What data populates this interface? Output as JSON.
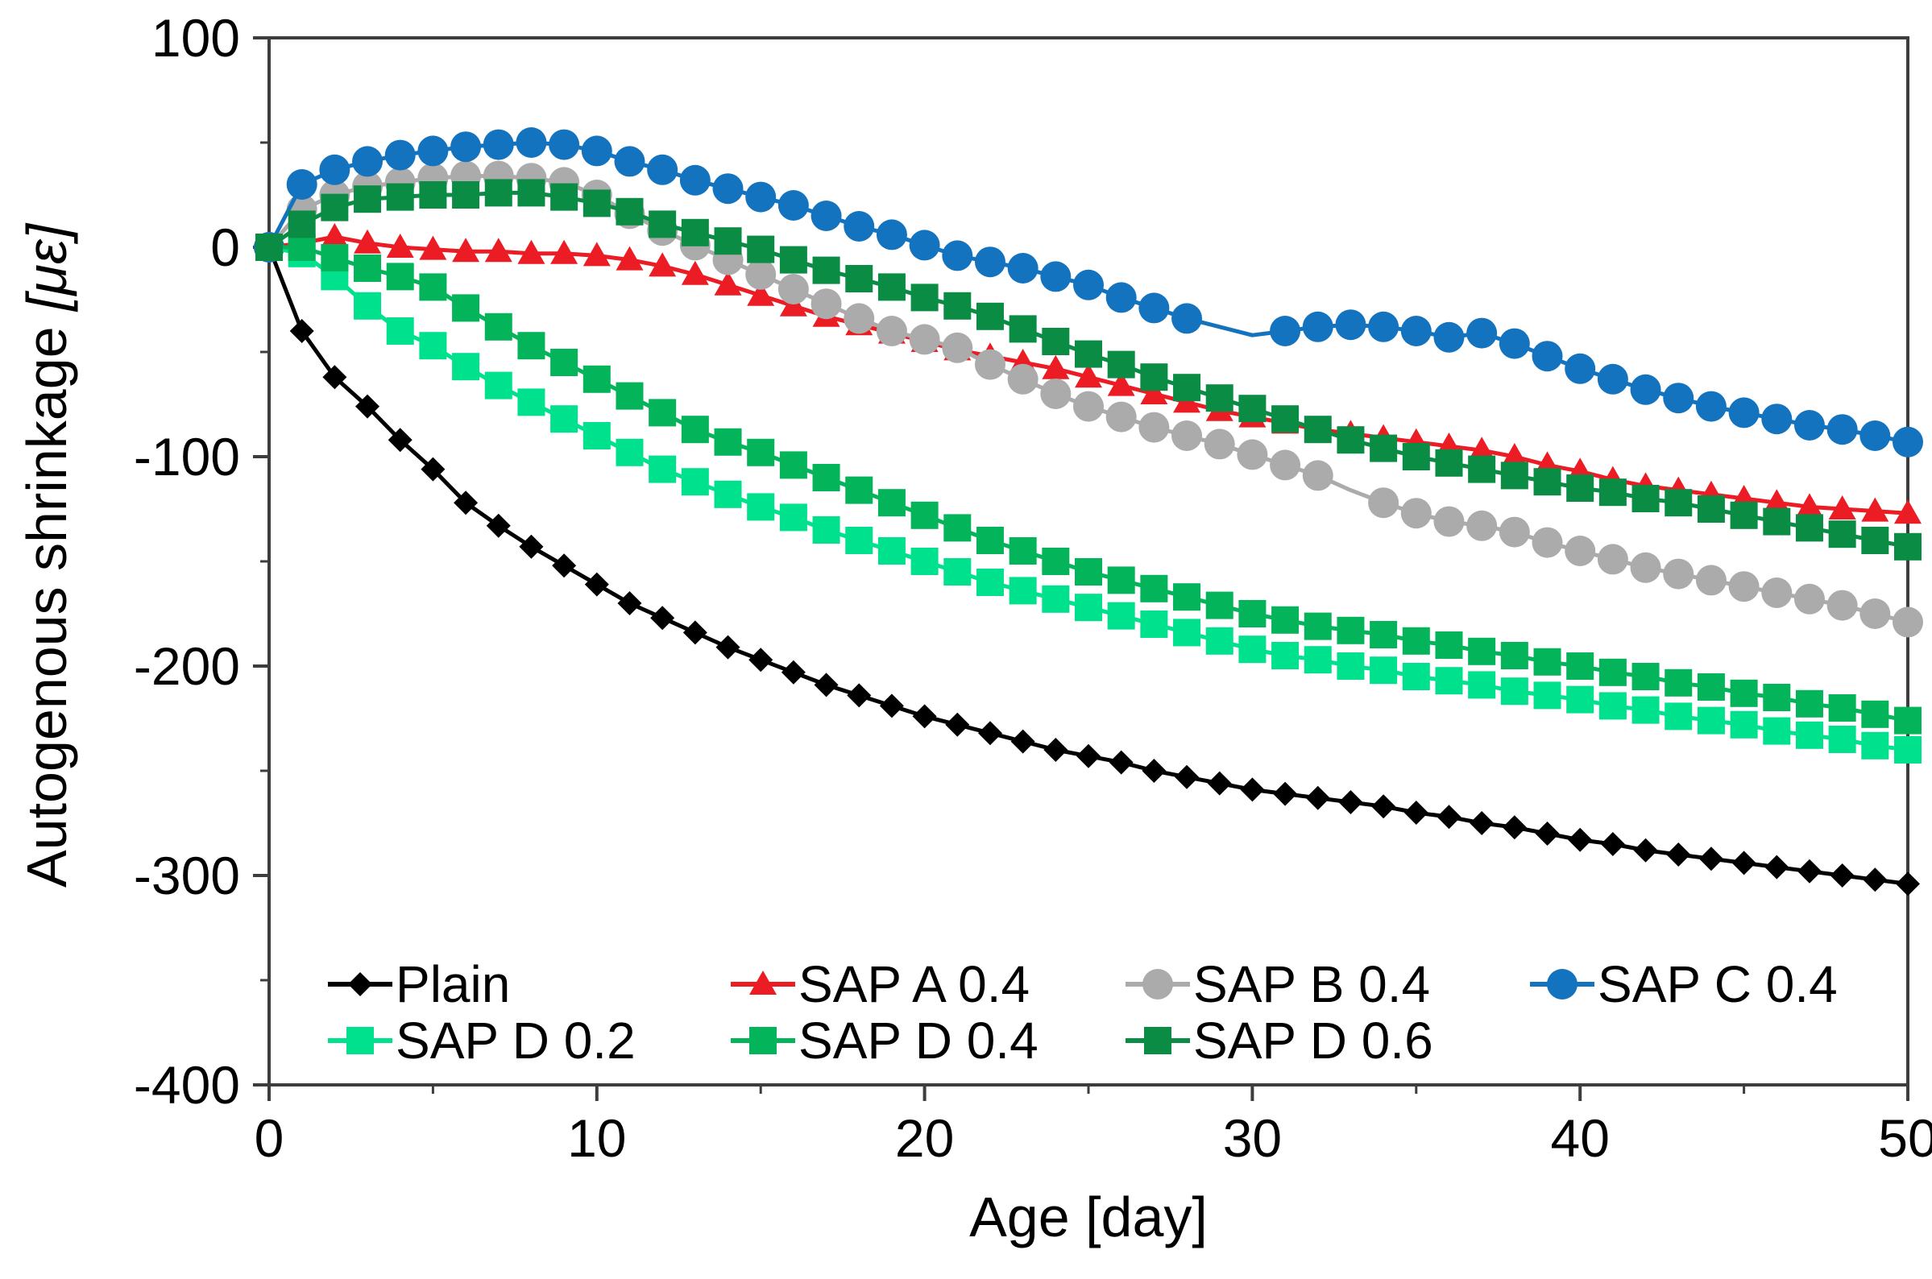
{
  "chart_data": {
    "type": "line",
    "title": "",
    "xlabel": "Age [day]",
    "ylabel": "Autogenous shrinkage",
    "ylabel_unit": "[με]",
    "xlim": [
      0,
      50
    ],
    "ylim": [
      -400,
      100
    ],
    "x_ticks": [
      0,
      10,
      20,
      30,
      40,
      50
    ],
    "x_minor_ticks": [
      5,
      15,
      25,
      35,
      45
    ],
    "y_ticks": [
      100,
      0,
      -100,
      -200,
      -300,
      -400
    ],
    "y_minor_ticks": [
      50,
      -50,
      -150,
      -250,
      -350
    ],
    "grid": false,
    "legend_position": "bottom-inside",
    "axis_color": "#3d3d3d",
    "days": [
      0,
      1,
      2,
      3,
      4,
      5,
      6,
      7,
      8,
      9,
      10,
      11,
      12,
      13,
      14,
      15,
      16,
      17,
      18,
      19,
      20,
      21,
      22,
      23,
      24,
      25,
      26,
      27,
      28,
      29,
      30,
      31,
      32,
      33,
      34,
      35,
      36,
      37,
      38,
      39,
      40,
      41,
      42,
      43,
      44,
      45,
      46,
      47,
      48,
      49,
      50
    ],
    "series": [
      {
        "name": "Plain",
        "marker": "diamond",
        "color": "#000000",
        "marker_skip": [],
        "values": [
          0,
          -40,
          -62,
          -76,
          -92,
          -106,
          -122,
          -133,
          -143,
          -152,
          -161,
          -170,
          -177,
          -184,
          -191,
          -197,
          -203,
          -209,
          -214,
          -219,
          -224,
          -228,
          -232,
          -236,
          -240,
          -243,
          -246,
          -250,
          -253,
          -256,
          -259,
          -261,
          -263,
          -265,
          -267,
          -270,
          -272,
          -275,
          -277,
          -280,
          -283,
          -285,
          -288,
          -290,
          -292,
          -294,
          -296,
          -298,
          -300,
          -302,
          -304
        ]
      },
      {
        "name": "SAP A 0.4",
        "marker": "triangle",
        "color": "#eb1c24",
        "marker_skip": [],
        "values": [
          0,
          2,
          5,
          2,
          0,
          -1,
          -2,
          -2,
          -3,
          -3,
          -4,
          -6,
          -9,
          -13,
          -18,
          -23,
          -28,
          -33,
          -37,
          -41,
          -45,
          -49,
          -52,
          -55,
          -58,
          -62,
          -66,
          -70,
          -74,
          -78,
          -81,
          -84,
          -87,
          -89,
          -91,
          -93,
          -95,
          -97,
          -100,
          -104,
          -107,
          -111,
          -114,
          -116,
          -118,
          -120,
          -122,
          -124,
          -125,
          -126,
          -127
        ]
      },
      {
        "name": "SAP B 0.4",
        "marker": "circle",
        "color": "#ababab",
        "marker_skip": [
          33
        ],
        "values": [
          0,
          18,
          25,
          29,
          31,
          33,
          34,
          34,
          33,
          31,
          25,
          16,
          8,
          1,
          -6,
          -13,
          -20,
          -27,
          -34,
          -40,
          -44,
          -48,
          -56,
          -63,
          -70,
          -76,
          -81,
          -86,
          -90,
          -94,
          -99,
          -104,
          -109,
          -116,
          -122,
          -127,
          -131,
          -133,
          -136,
          -141,
          -145,
          -149,
          -153,
          -156,
          -159,
          -162,
          -165,
          -168,
          -171,
          -175,
          -179
        ]
      },
      {
        "name": "SAP C 0.4",
        "marker": "circle",
        "color": "#1473be",
        "marker_skip": [
          29,
          30
        ],
        "values": [
          0,
          30,
          37,
          41,
          44,
          46,
          48,
          49,
          50,
          49,
          46,
          41,
          37,
          32,
          28,
          24,
          20,
          15,
          10,
          6,
          1,
          -4,
          -7,
          -10,
          -14,
          -18,
          -24,
          -29,
          -34,
          -38,
          -42,
          -40,
          -38,
          -37,
          -38,
          -40,
          -43,
          -41,
          -46,
          -52,
          -58,
          -63,
          -68,
          -72,
          -76,
          -79,
          -82,
          -85,
          -87,
          -90,
          -93
        ]
      },
      {
        "name": "SAP D 0.2",
        "marker": "square",
        "color": "#00e18d",
        "marker_skip": [],
        "values": [
          0,
          -3,
          -14,
          -28,
          -40,
          -47,
          -57,
          -66,
          -74,
          -82,
          -90,
          -98,
          -106,
          -112,
          -118,
          -124,
          -129,
          -135,
          -140,
          -145,
          -150,
          -155,
          -160,
          -164,
          -168,
          -172,
          -176,
          -180,
          -184,
          -188,
          -192,
          -195,
          -197,
          -200,
          -202,
          -205,
          -207,
          -209,
          -212,
          -214,
          -216,
          -219,
          -221,
          -224,
          -226,
          -228,
          -231,
          -233,
          -235,
          -238,
          -240
        ]
      },
      {
        "name": "SAP D 0.4",
        "marker": "square",
        "color": "#04b45a",
        "marker_skip": [],
        "values": [
          0,
          0,
          -5,
          -10,
          -14,
          -19,
          -29,
          -38,
          -47,
          -55,
          -63,
          -71,
          -79,
          -87,
          -93,
          -98,
          -104,
          -110,
          -116,
          -122,
          -128,
          -134,
          -140,
          -145,
          -150,
          -155,
          -159,
          -163,
          -167,
          -171,
          -175,
          -178,
          -181,
          -183,
          -185,
          -188,
          -190,
          -193,
          -195,
          -198,
          -200,
          -203,
          -205,
          -208,
          -210,
          -213,
          -215,
          -218,
          -220,
          -223,
          -226
        ]
      },
      {
        "name": "SAP D 0.6",
        "marker": "square",
        "color": "#0b8c45",
        "marker_skip": [],
        "values": [
          0,
          11,
          19,
          23,
          24,
          25,
          25,
          26,
          26,
          24,
          21,
          17,
          11,
          7,
          3,
          -1,
          -6,
          -11,
          -15,
          -19,
          -24,
          -28,
          -33,
          -39,
          -45,
          -51,
          -56,
          -62,
          -67,
          -72,
          -77,
          -82,
          -87,
          -92,
          -96,
          -100,
          -103,
          -106,
          -109,
          -112,
          -115,
          -117,
          -120,
          -122,
          -125,
          -128,
          -131,
          -134,
          -137,
          -140,
          -143
        ]
      }
    ]
  }
}
